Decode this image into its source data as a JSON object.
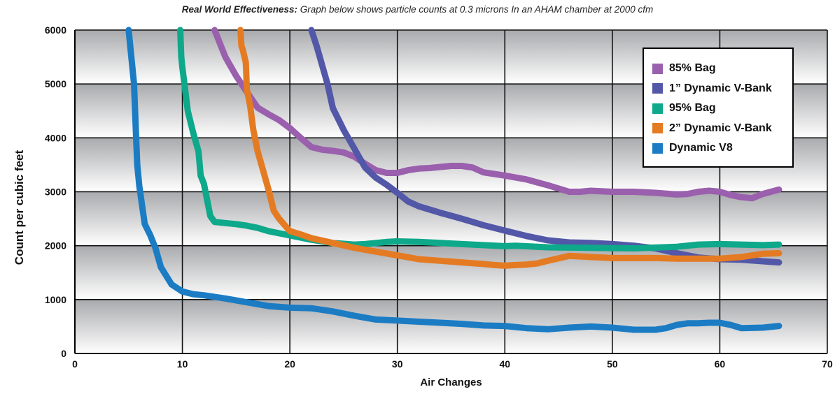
{
  "title": {
    "bold": "Real World Effectiveness:",
    "rest": " Graph below shows particle counts at 0.3 microns In an AHAM chamber at 2000 cfm"
  },
  "chart_data": {
    "type": "line",
    "xlabel": "Air Changes",
    "ylabel": "Count per cubic feet",
    "xlim": [
      0,
      70
    ],
    "ylim": [
      0,
      6000
    ],
    "xticks": [
      0,
      10,
      20,
      30,
      40,
      50,
      60,
      70
    ],
    "yticks": [
      0,
      1000,
      2000,
      3000,
      4000,
      5000,
      6000
    ],
    "grid": true,
    "legend_position": "top-right",
    "series": [
      {
        "name": "85% Bag",
        "color": "#9a5fad",
        "x": [
          13,
          14,
          15,
          16,
          17,
          18,
          19,
          20,
          21,
          22,
          23,
          24,
          25,
          26,
          27,
          28,
          29,
          30,
          31,
          32,
          33,
          34,
          35,
          36,
          37,
          38,
          39,
          40,
          42,
          44,
          46,
          47,
          48,
          49,
          50,
          52,
          54,
          56,
          57,
          58,
          59,
          60,
          61,
          62,
          63,
          64,
          65.5
        ],
        "y": [
          6000,
          5500,
          5150,
          4850,
          4560,
          4440,
          4330,
          4180,
          4000,
          3830,
          3780,
          3760,
          3730,
          3650,
          3520,
          3400,
          3350,
          3350,
          3400,
          3430,
          3440,
          3460,
          3480,
          3480,
          3450,
          3360,
          3330,
          3300,
          3230,
          3120,
          3000,
          3000,
          3020,
          3010,
          3000,
          3000,
          2980,
          2950,
          2960,
          3000,
          3020,
          3000,
          2940,
          2900,
          2880,
          2960,
          3040
        ]
      },
      {
        "name": "1” Dynamic V-Bank",
        "color": "#5257a8",
        "x": [
          22,
          22.5,
          23,
          23.5,
          24,
          25,
          26,
          27,
          28,
          29,
          30,
          31,
          32,
          34,
          36,
          38,
          40,
          42,
          44,
          46,
          48,
          50,
          52,
          54,
          56,
          58,
          60,
          62,
          64,
          65.5
        ],
        "y": [
          6000,
          5700,
          5350,
          5000,
          4550,
          4150,
          3800,
          3450,
          3260,
          3130,
          2980,
          2820,
          2730,
          2610,
          2500,
          2380,
          2280,
          2180,
          2100,
          2060,
          2050,
          2030,
          2000,
          1950,
          1860,
          1780,
          1750,
          1740,
          1710,
          1690
        ]
      },
      {
        "name": "95% Bag",
        "color": "#0ea88a",
        "x": [
          9.8,
          9.9,
          10,
          10.5,
          11,
          11.5,
          11.7,
          12,
          12.3,
          12.6,
          13,
          14,
          15,
          16,
          17,
          18,
          20,
          22,
          24,
          26,
          27,
          28,
          29,
          30,
          32,
          34,
          36,
          38,
          40,
          41,
          44,
          48,
          52,
          56,
          58,
          60,
          62,
          64,
          65.5
        ],
        "y": [
          6000,
          5500,
          5300,
          4500,
          4100,
          3750,
          3300,
          3150,
          2850,
          2550,
          2440,
          2420,
          2400,
          2370,
          2330,
          2270,
          2190,
          2110,
          2050,
          2020,
          2030,
          2050,
          2070,
          2080,
          2070,
          2050,
          2030,
          2010,
          1990,
          2000,
          1970,
          1960,
          1950,
          1980,
          2020,
          2030,
          2020,
          2010,
          2020
        ]
      },
      {
        "name": "2” Dynamic V-Bank",
        "color": "#e47b22",
        "x": [
          15.4,
          15.5,
          15.6,
          15.9,
          16,
          16.3,
          16.6,
          17,
          17.5,
          18,
          18.5,
          19,
          20,
          21,
          22,
          24,
          26,
          28,
          30,
          32,
          34,
          36,
          38,
          39,
          40,
          41,
          42,
          43,
          44,
          46,
          48,
          50,
          52,
          54,
          56,
          58,
          60,
          62,
          64,
          65.5
        ],
        "y": [
          6000,
          5700,
          5650,
          5400,
          4900,
          4600,
          4150,
          3750,
          3400,
          3050,
          2650,
          2500,
          2270,
          2210,
          2140,
          2050,
          1960,
          1890,
          1820,
          1750,
          1720,
          1690,
          1660,
          1640,
          1630,
          1640,
          1650,
          1670,
          1720,
          1810,
          1790,
          1770,
          1770,
          1770,
          1760,
          1760,
          1760,
          1790,
          1850,
          1860
        ]
      },
      {
        "name": "Dynamic V8",
        "color": "#1b7cc4",
        "x": [
          5,
          5.5,
          5.7,
          5.8,
          6,
          6.5,
          7,
          7.5,
          8,
          9,
          10,
          11,
          12,
          14,
          16,
          18,
          20,
          22,
          24,
          26,
          28,
          30,
          32,
          34,
          36,
          38,
          40,
          42,
          44,
          46,
          48,
          50,
          52,
          54,
          55,
          56,
          57,
          58,
          59,
          60,
          61,
          62,
          64,
          65.5
        ],
        "y": [
          6000,
          5000,
          4000,
          3500,
          3100,
          2400,
          2200,
          1950,
          1600,
          1280,
          1150,
          1100,
          1080,
          1020,
          950,
          880,
          850,
          840,
          780,
          700,
          630,
          610,
          590,
          570,
          550,
          520,
          510,
          470,
          450,
          480,
          500,
          480,
          440,
          440,
          470,
          530,
          560,
          560,
          570,
          570,
          530,
          470,
          480,
          510
        ]
      }
    ]
  }
}
